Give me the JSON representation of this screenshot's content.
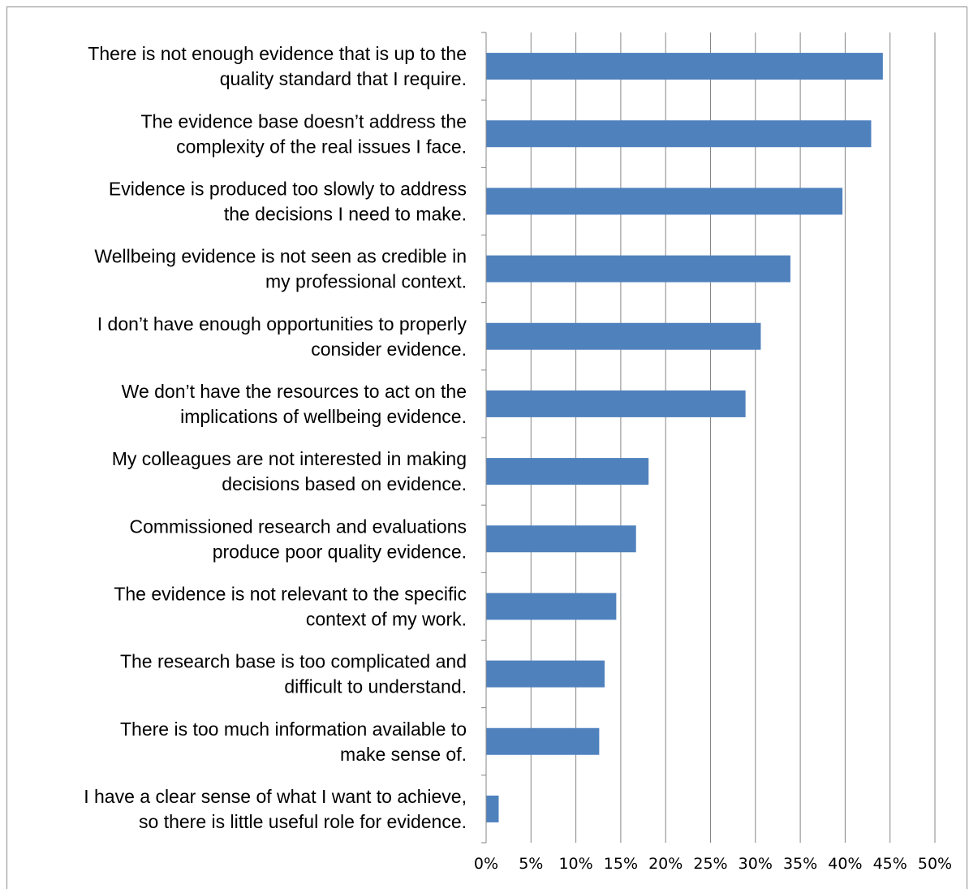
{
  "chart_data": {
    "type": "bar",
    "orientation": "horizontal",
    "title": "",
    "xlabel": "",
    "ylabel": "",
    "categories": [
      [
        "There is not enough evidence that is up to the",
        "quality standard that I require."
      ],
      [
        "The evidence base doesn’t address the",
        "complexity of the real issues I face."
      ],
      [
        "Evidence is produced too slowly to address",
        "the decisions I need to make."
      ],
      [
        "Wellbeing evidence is not seen as credible in",
        "my professional context."
      ],
      [
        "I don’t have enough opportunities to properly",
        "consider evidence."
      ],
      [
        "We don’t have the resources to act on the",
        "implications of wellbeing evidence."
      ],
      [
        "My colleagues are not interested in making",
        "decisions based on evidence."
      ],
      [
        "Commissioned research and evaluations",
        "produce poor quality evidence."
      ],
      [
        "The evidence is not relevant to the specific",
        "context of my work."
      ],
      [
        "The research base is too complicated and",
        "difficult to understand."
      ],
      [
        "There is too much information available to",
        "make sense of."
      ],
      [
        "I have a clear sense of what I want to achieve,",
        "so there is little useful role for evidence."
      ]
    ],
    "values": [
      44.2,
      42.9,
      39.7,
      33.9,
      30.6,
      28.9,
      18.1,
      16.7,
      14.5,
      13.2,
      12.6,
      1.4
    ],
    "xlim": [
      0,
      50
    ],
    "ticks": [
      "0%",
      "5%",
      "10%",
      "15%",
      "20%",
      "25%",
      "30%",
      "35%",
      "40%",
      "45%",
      "50%"
    ],
    "grid": "vertical",
    "legend": "none",
    "bar_color": "#4f81bd",
    "grid_color": "#868686"
  }
}
